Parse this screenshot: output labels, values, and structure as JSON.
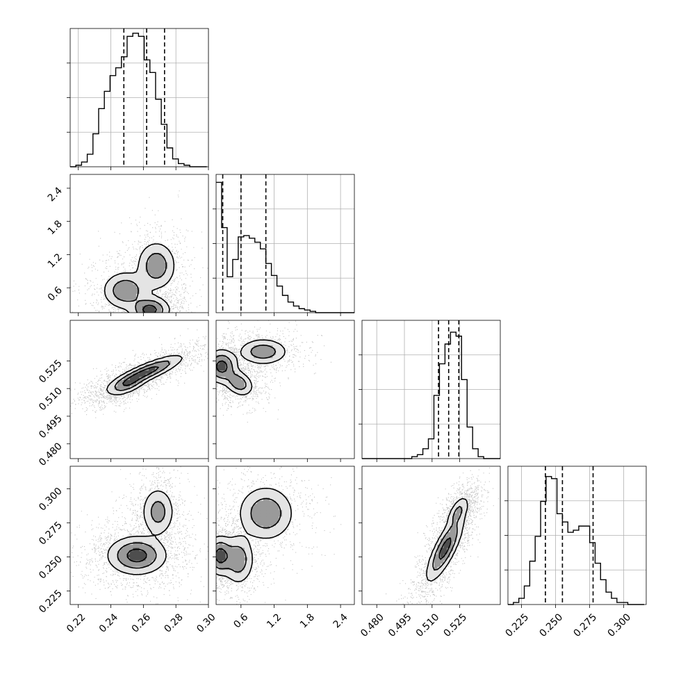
{
  "chart_data": {
    "type": "corner",
    "parameters": [
      {
        "range": [
          0.215,
          0.3
        ],
        "ticks": [
          0.22,
          0.24,
          0.26,
          0.28,
          0.3
        ],
        "tick_labels": [
          "0.22",
          "0.24",
          "0.26",
          "0.28",
          "0.30"
        ],
        "quantiles": [
          0.248,
          0.262,
          0.273
        ],
        "hist_bins": [
          0.215,
          0.2185,
          0.222,
          0.2255,
          0.229,
          0.2325,
          0.236,
          0.2395,
          0.243,
          0.2465,
          0.25,
          0.2535,
          0.257,
          0.2605,
          0.264,
          0.2675,
          0.271,
          0.2745,
          0.278,
          0.2815,
          0.285,
          0.2885,
          0.292,
          0.2955,
          0.299
        ],
        "hist_counts": [
          0,
          1,
          3,
          8,
          21,
          37,
          48,
          58,
          63,
          70,
          83,
          85,
          83,
          68,
          60,
          43,
          27,
          12,
          5,
          2,
          1,
          0,
          0,
          0
        ],
        "hist_ymax": 88
      },
      {
        "range": [
          0.15,
          2.65
        ],
        "ticks": [
          0.6,
          1.2,
          1.8,
          2.4
        ],
        "tick_labels": [
          "0.6",
          "1.2",
          "1.8",
          "2.4"
        ],
        "quantiles": [
          0.27,
          0.6,
          1.05
        ],
        "hist_bins": [
          0.15,
          0.25,
          0.35,
          0.45,
          0.55,
          0.65,
          0.75,
          0.85,
          0.95,
          1.05,
          1.15,
          1.25,
          1.35,
          1.45,
          1.55,
          1.65,
          1.75,
          1.85,
          1.95,
          2.05,
          2.15,
          2.25,
          2.35,
          2.45,
          2.55,
          2.65
        ],
        "hist_counts": [
          98,
          64,
          27,
          40,
          57,
          58,
          56,
          53,
          48,
          37,
          28,
          20,
          13,
          8,
          5,
          3,
          2,
          1,
          0,
          0,
          0,
          0,
          0,
          0,
          0
        ],
        "hist_ymax": 104
      },
      {
        "range": [
          0.472,
          0.547
        ],
        "ticks": [
          0.48,
          0.495,
          0.51,
          0.525
        ],
        "tick_labels": [
          "0.480",
          "0.495",
          "0.510",
          "0.525"
        ],
        "quantiles": [
          0.5135,
          0.519,
          0.5245
        ],
        "hist_bins": [
          0.472,
          0.475,
          0.478,
          0.481,
          0.484,
          0.487,
          0.49,
          0.493,
          0.496,
          0.499,
          0.502,
          0.505,
          0.508,
          0.511,
          0.514,
          0.517,
          0.52,
          0.523,
          0.526,
          0.529,
          0.532,
          0.535,
          0.538,
          0.541,
          0.544,
          0.547
        ],
        "hist_counts": [
          0,
          0,
          0,
          0,
          0,
          0,
          0,
          0,
          0,
          1,
          2,
          5,
          10,
          32,
          48,
          58,
          64,
          62,
          40,
          16,
          5,
          1,
          0,
          0,
          0
        ],
        "hist_ymax": 70
      },
      {
        "range": [
          0.215,
          0.3165
        ],
        "ticks": [
          0.225,
          0.25,
          0.275,
          0.3
        ],
        "tick_labels": [
          "0.225",
          "0.250",
          "0.275",
          "0.300"
        ],
        "quantiles": [
          0.2425,
          0.255,
          0.2775
        ],
        "hist_bins": [
          0.215,
          0.219,
          0.223,
          0.227,
          0.231,
          0.235,
          0.239,
          0.243,
          0.247,
          0.251,
          0.255,
          0.259,
          0.263,
          0.267,
          0.271,
          0.275,
          0.279,
          0.283,
          0.287,
          0.291,
          0.295,
          0.299,
          0.303,
          0.307,
          0.311,
          0.315
        ],
        "hist_counts": [
          0,
          1,
          3,
          9,
          21,
          33,
          50,
          62,
          61,
          44,
          40,
          35,
          36,
          38,
          38,
          30,
          20,
          12,
          6,
          3,
          1,
          1,
          0,
          0,
          0
        ],
        "hist_ymax": 67
      }
    ],
    "pairs": [
      {
        "row": 1,
        "col": 0,
        "blobs": [
          [
            0.264,
            0.2,
            0.006,
            0.12,
            0,
            1.0
          ],
          [
            0.249,
            0.55,
            0.007,
            0.17,
            0,
            0.75
          ],
          [
            0.268,
            1.0,
            0.006,
            0.22,
            0,
            0.7
          ]
        ]
      },
      {
        "row": 2,
        "col": 0,
        "blobs": [
          [
            0.262,
            0.519,
            0.011,
            0.0045,
            0.85,
            1.0
          ],
          [
            0.25,
            0.512,
            0.006,
            0.003,
            0.6,
            0.6
          ]
        ]
      },
      {
        "row": 2,
        "col": 1,
        "blobs": [
          [
            0.25,
            0.522,
            0.14,
            0.0045,
            0,
            1.0
          ],
          [
            0.56,
            0.513,
            0.13,
            0.0035,
            -0.3,
            0.7
          ],
          [
            1.0,
            0.53,
            0.22,
            0.0035,
            0,
            0.7
          ]
        ]
      },
      {
        "row": 3,
        "col": 0,
        "blobs": [
          [
            0.256,
            0.251,
            0.009,
            0.007,
            0,
            1.0
          ],
          [
            0.269,
            0.283,
            0.005,
            0.009,
            0,
            0.6
          ]
        ]
      },
      {
        "row": 3,
        "col": 1,
        "blobs": [
          [
            0.22,
            0.251,
            0.12,
            0.007,
            0,
            1.0
          ],
          [
            0.55,
            0.248,
            0.14,
            0.009,
            0,
            0.7
          ],
          [
            1.05,
            0.282,
            0.25,
            0.01,
            0,
            0.75
          ]
        ]
      },
      {
        "row": 3,
        "col": 2,
        "blobs": [
          [
            0.517,
            0.256,
            0.005,
            0.012,
            0.8,
            1.0
          ],
          [
            0.524,
            0.283,
            0.003,
            0.006,
            0.6,
            0.5
          ]
        ]
      }
    ]
  }
}
